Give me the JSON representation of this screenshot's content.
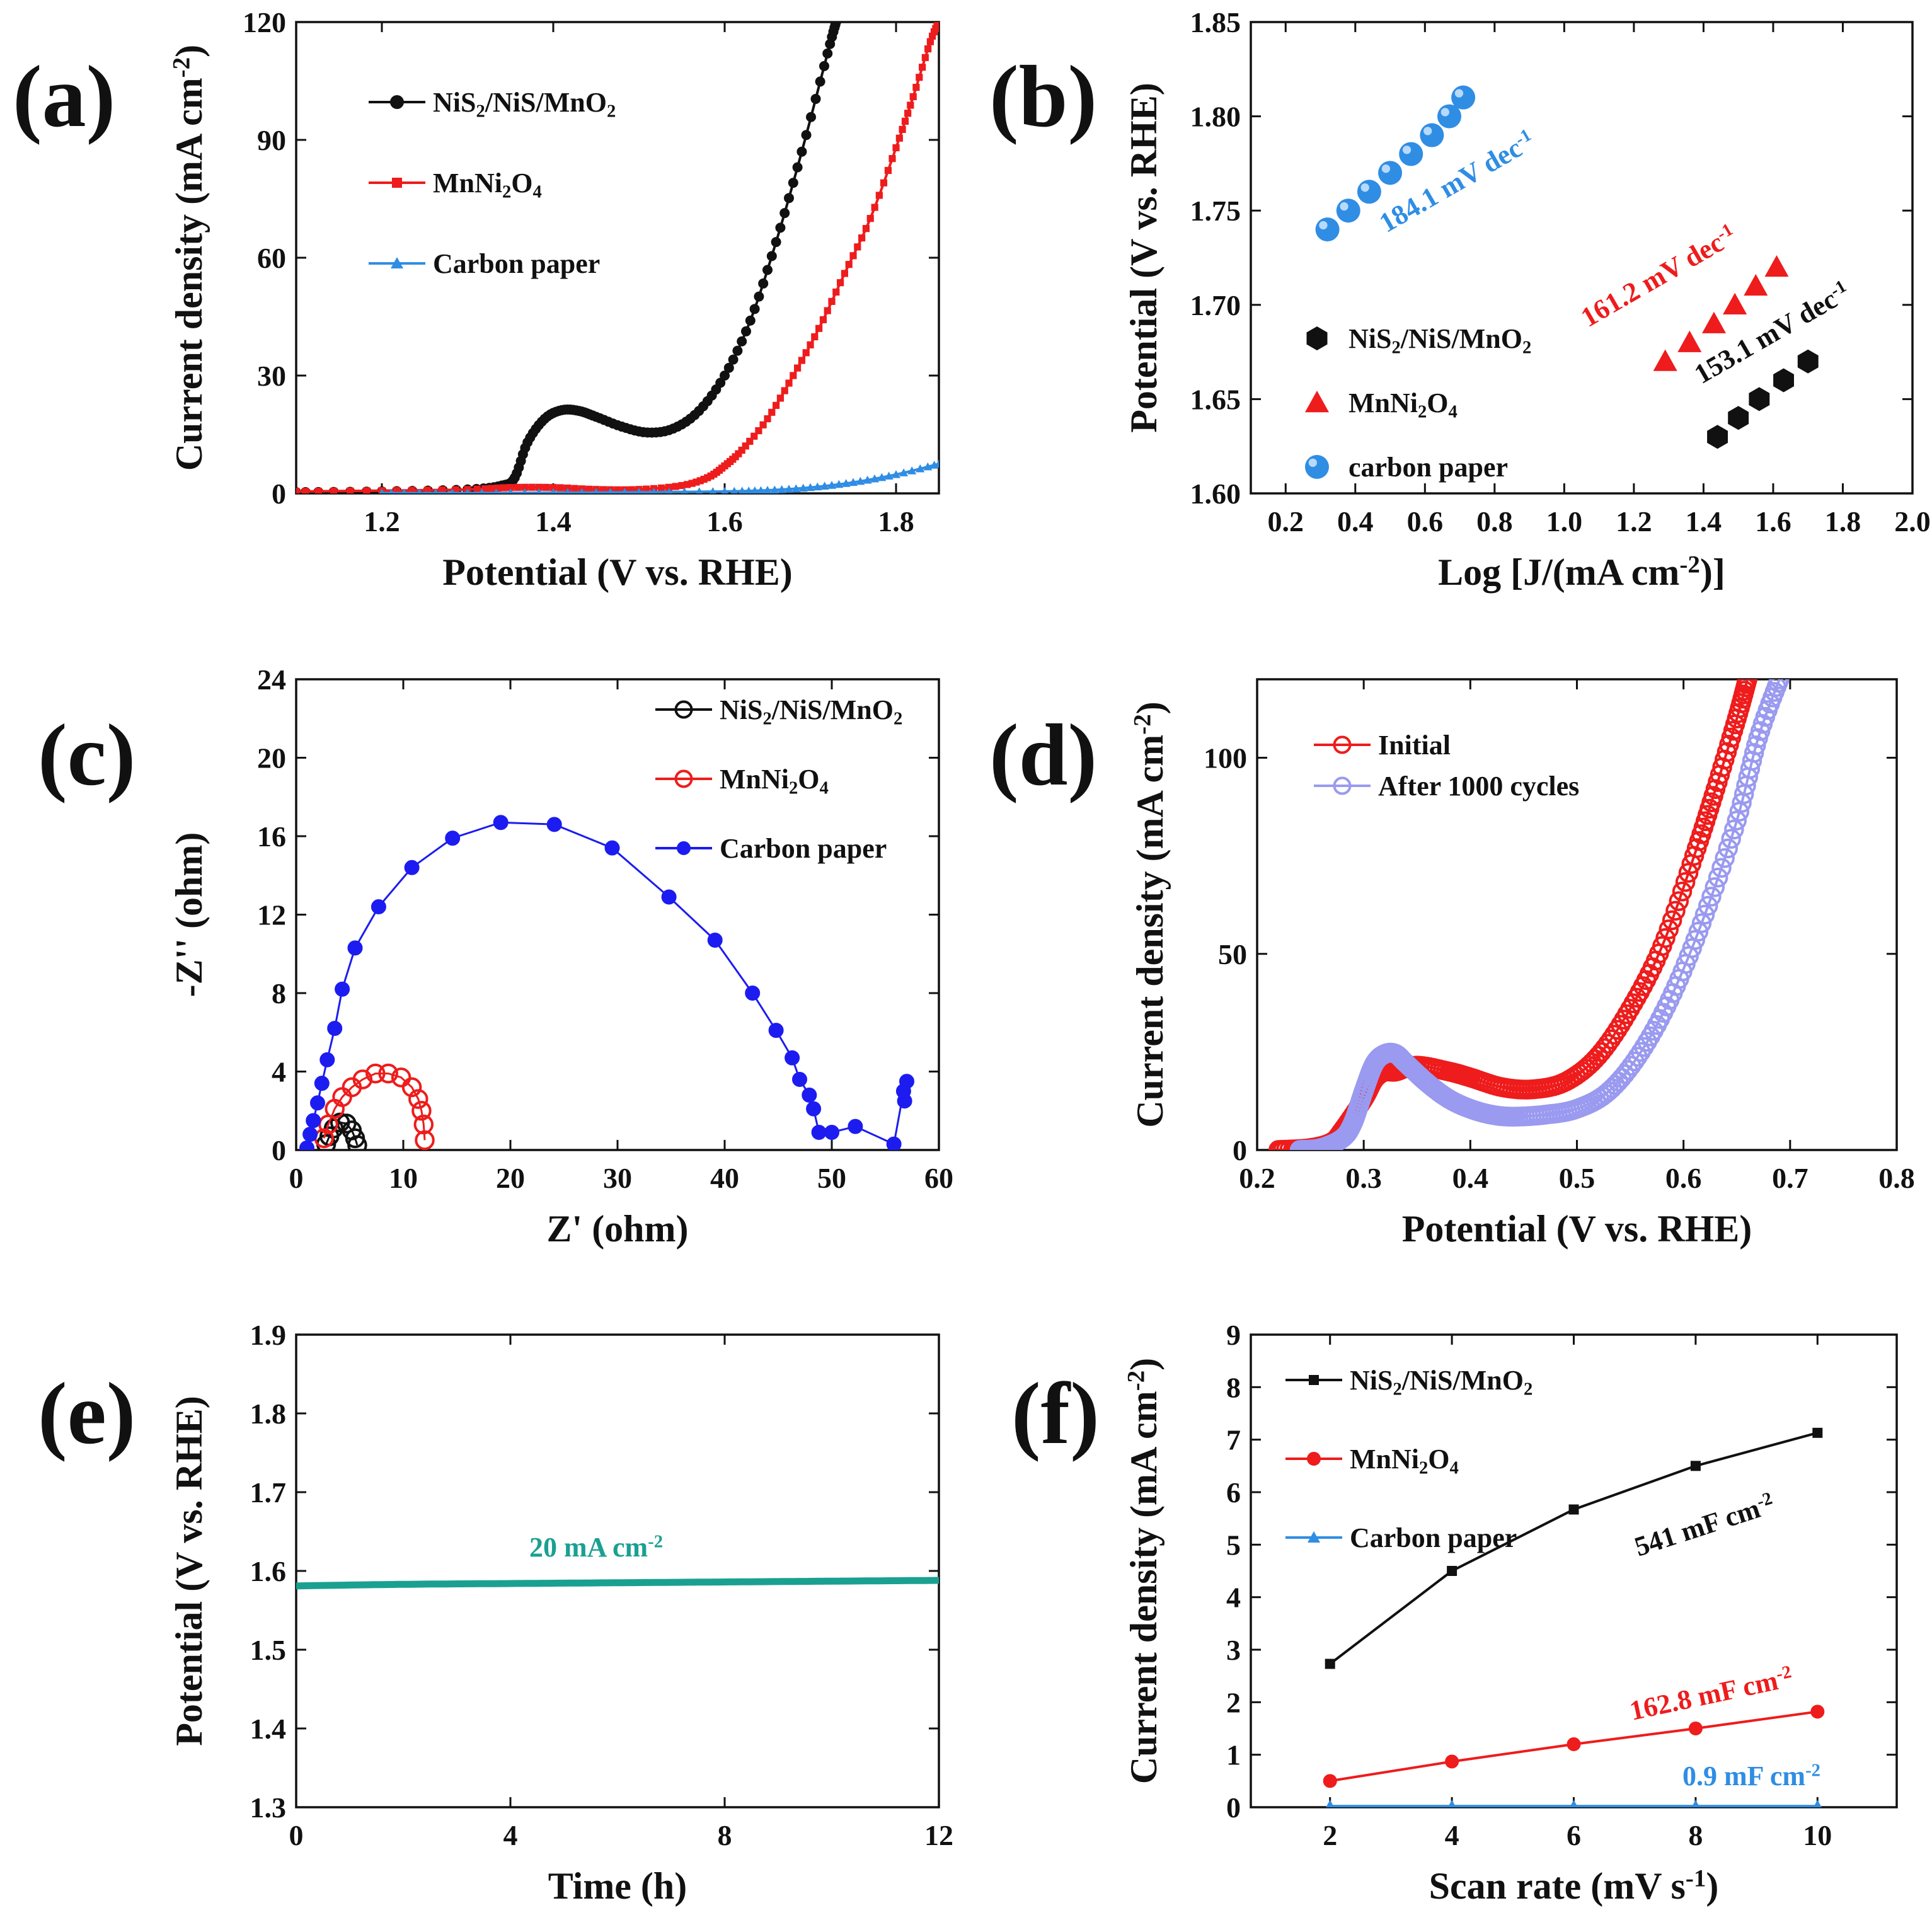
{
  "colors": {
    "black": "#111111",
    "red": "#ee1c1c",
    "blue": "#2f8de4",
    "navy": "#1c1cf0",
    "lavender": "#9a9af0",
    "teal": "#1aa091"
  },
  "chart_data": [
    {
      "id": "a",
      "panel": "(a)",
      "type": "line",
      "xlabel": "Potential (V vs. RHE)",
      "ylabel": "Current density (mA cm-2)",
      "xlim": [
        1.1,
        1.85
      ],
      "ylim": [
        0,
        120
      ],
      "xticks": [
        1.2,
        1.4,
        1.6,
        1.8
      ],
      "yticks": [
        0,
        30,
        60,
        90,
        120
      ],
      "legend": [
        "NiS2/NiS/MnO2",
        "MnNi2O4",
        "Carbon paper"
      ],
      "series": [
        {
          "name": "NiS2/NiS/MnO2",
          "color": "#111111",
          "marker": "circle",
          "x": [
            1.1,
            1.2,
            1.3,
            1.34,
            1.355,
            1.37,
            1.39,
            1.41,
            1.43,
            1.45,
            1.48,
            1.51,
            1.54,
            1.57,
            1.6,
            1.63,
            1.66,
            1.69,
            1.72,
            1.73
          ],
          "y": [
            0.3,
            0.5,
            1.0,
            2.0,
            4,
            13,
            19,
            21.2,
            21,
            19.5,
            17,
            15.5,
            16.5,
            21,
            30,
            44,
            64,
            87,
            112,
            120
          ]
        },
        {
          "name": "MnNi2O4",
          "color": "#ee1c1c",
          "marker": "square",
          "x": [
            1.1,
            1.2,
            1.3,
            1.35,
            1.4,
            1.45,
            1.5,
            1.55,
            1.58,
            1.6,
            1.62,
            1.65,
            1.68,
            1.71,
            1.74,
            1.77,
            1.8,
            1.82,
            1.84,
            1.85
          ],
          "y": [
            0.5,
            0.7,
            1.0,
            1.5,
            1.5,
            1.0,
            1.0,
            2.0,
            4.0,
            7.0,
            11,
            19,
            30,
            42,
            56,
            70,
            88,
            101,
            115,
            120
          ]
        },
        {
          "name": "Carbon paper",
          "color": "#2f8de4",
          "marker": "triangle",
          "x": [
            1.2,
            1.3,
            1.4,
            1.5,
            1.6,
            1.65,
            1.7,
            1.75,
            1.8,
            1.85
          ],
          "y": [
            0.1,
            0.1,
            0.2,
            0.3,
            0.5,
            0.8,
            1.5,
            2.8,
            4.8,
            7.5
          ]
        }
      ]
    },
    {
      "id": "b",
      "panel": "(b)",
      "type": "scatter",
      "xlabel": "Log [J/(mA cm-2)]",
      "ylabel": "Potential (V vs. RHE)",
      "xlim": [
        0.1,
        2.0
      ],
      "ylim": [
        1.6,
        1.85
      ],
      "xticks": [
        0.2,
        0.4,
        0.6,
        0.8,
        1.0,
        1.2,
        1.4,
        1.6,
        1.8,
        2.0
      ],
      "yticks": [
        1.6,
        1.65,
        1.7,
        1.75,
        1.8,
        1.85
      ],
      "legend": [
        "NiS2/NiS/MnO2",
        "MnNi2O4",
        "carbon paper"
      ],
      "annotations": [
        "184.1 mV dec-1",
        "161.2 mV dec-1",
        "153.1 mV dec-1"
      ],
      "series": [
        {
          "name": "NiS2/NiS/MnO2",
          "color": "#111111",
          "marker": "hexagon",
          "tafel_slope": "153.1 mV dec-1",
          "x": [
            1.44,
            1.5,
            1.56,
            1.63,
            1.7
          ],
          "y": [
            1.63,
            1.64,
            1.65,
            1.66,
            1.67
          ]
        },
        {
          "name": "MnNi2O4",
          "color": "#ee1c1c",
          "marker": "triangle",
          "tafel_slope": "161.2 mV dec-1",
          "x": [
            1.29,
            1.36,
            1.43,
            1.49,
            1.55,
            1.61
          ],
          "y": [
            1.67,
            1.68,
            1.69,
            1.7,
            1.71,
            1.72
          ]
        },
        {
          "name": "carbon paper",
          "color": "#2f8de4",
          "marker": "sphere",
          "tafel_slope": "184.1 mV dec-1",
          "x": [
            0.32,
            0.38,
            0.44,
            0.5,
            0.56,
            0.62,
            0.67,
            0.71
          ],
          "y": [
            1.74,
            1.75,
            1.76,
            1.77,
            1.78,
            1.79,
            1.8,
            1.81
          ]
        }
      ]
    },
    {
      "id": "c",
      "panel": "(c)",
      "type": "scatter",
      "xlabel": "Z' (ohm)",
      "ylabel": "-Z'' (ohm)",
      "xlim": [
        0,
        60
      ],
      "ylim": [
        0,
        24
      ],
      "xticks": [
        0,
        10,
        20,
        30,
        40,
        50,
        60
      ],
      "yticks": [
        0,
        4,
        8,
        12,
        16,
        20,
        24
      ],
      "legend": [
        "NiS2/NiS/MnO2",
        "MnNi2O4",
        "Carbon paper"
      ],
      "series": [
        {
          "name": "NiS2/NiS/MnO2",
          "color": "#111111",
          "marker": "open-circle",
          "x": [
            2.8,
            3.1,
            3.5,
            4.1,
            4.7,
            5.2,
            5.5,
            5.7
          ],
          "y": [
            0.3,
            0.7,
            1.1,
            1.4,
            1.35,
            1.0,
            0.6,
            0.25
          ]
        },
        {
          "name": "MnNi2O4",
          "color": "#ee1c1c",
          "marker": "open-circle",
          "x": [
            2.6,
            3.0,
            3.6,
            4.3,
            5.2,
            6.2,
            7.4,
            8.6,
            9.8,
            10.8,
            11.4,
            11.7,
            11.9,
            12.0
          ],
          "y": [
            0.6,
            1.3,
            2.1,
            2.7,
            3.2,
            3.6,
            3.9,
            3.9,
            3.7,
            3.2,
            2.6,
            2.0,
            1.3,
            0.5
          ]
        },
        {
          "name": "Carbon paper",
          "color": "#1c1cf0",
          "marker": "filled-circle",
          "x": [
            1.0,
            1.3,
            1.6,
            2.0,
            2.4,
            2.9,
            3.6,
            4.3,
            5.5,
            7.7,
            10.8,
            14.6,
            19.1,
            24.1,
            29.5,
            34.8,
            39.1,
            42.6,
            44.8,
            46.3,
            47.0,
            47.9,
            48.3,
            48.8,
            50.0,
            52.2,
            55.8,
            56.7,
            57.0,
            56.8
          ],
          "y": [
            0.1,
            0.8,
            1.5,
            2.4,
            3.4,
            4.6,
            6.2,
            8.2,
            10.3,
            12.4,
            14.4,
            15.9,
            16.7,
            16.6,
            15.4,
            12.9,
            10.7,
            8.0,
            6.1,
            4.7,
            3.6,
            2.8,
            2.1,
            0.9,
            0.9,
            1.2,
            0.3,
            3.0,
            3.5,
            2.5
          ]
        }
      ]
    },
    {
      "id": "d",
      "panel": "(d)",
      "type": "line",
      "xlabel": "Potential (V vs. RHE)",
      "ylabel": "Current density (mA cm-2)",
      "xlim": [
        0.2,
        0.8
      ],
      "ylim": [
        0,
        120
      ],
      "xticks": [
        0.2,
        0.3,
        0.4,
        0.5,
        0.6,
        0.7,
        0.8
      ],
      "yticks": [
        0,
        50,
        100
      ],
      "legend": [
        "Initial",
        "After 1000 cycles"
      ],
      "series": [
        {
          "name": "Initial",
          "color": "#ee1c1c",
          "marker": "open-circle",
          "x": [
            0.22,
            0.25,
            0.27,
            0.28,
            0.3,
            0.31,
            0.32,
            0.33,
            0.35,
            0.38,
            0.4,
            0.43,
            0.46,
            0.49,
            0.52,
            0.55,
            0.58,
            0.61,
            0.63,
            0.65,
            0.66
          ],
          "y": [
            0,
            0.5,
            2,
            5,
            13,
            18,
            20,
            20,
            21.5,
            20,
            18.5,
            16,
            15.5,
            17.5,
            24,
            36,
            52,
            75,
            92,
            110,
            120
          ]
        },
        {
          "name": "After 1000 cycles",
          "color": "#9a9af0",
          "marker": "open-circle",
          "x": [
            0.24,
            0.26,
            0.28,
            0.29,
            0.3,
            0.31,
            0.32,
            0.33,
            0.34,
            0.36,
            0.38,
            0.4,
            0.42,
            0.44,
            0.47,
            0.5,
            0.53,
            0.56,
            0.59,
            0.62,
            0.65,
            0.67,
            0.69
          ],
          "y": [
            0,
            0.5,
            3,
            7,
            15,
            22,
            24.5,
            24.5,
            22,
            17,
            13,
            10.5,
            9,
            8.5,
            9,
            10.5,
            15,
            25,
            40,
            60,
            84,
            105,
            120
          ]
        }
      ]
    },
    {
      "id": "e",
      "panel": "(e)",
      "type": "line",
      "xlabel": "Time (h)",
      "ylabel": "Potential (V vs. RHE)",
      "xlim": [
        0,
        12
      ],
      "ylim": [
        1.3,
        1.9
      ],
      "xticks": [
        0,
        4,
        8,
        12
      ],
      "yticks": [
        1.3,
        1.4,
        1.5,
        1.6,
        1.7,
        1.8,
        1.9
      ],
      "annotations": [
        "20 mA cm-2"
      ],
      "series": [
        {
          "name": "20 mA cm-2",
          "color": "#1aa091",
          "x": [
            0,
            2,
            4,
            6,
            8,
            10,
            12
          ],
          "y": [
            1.581,
            1.583,
            1.584,
            1.585,
            1.586,
            1.587,
            1.588
          ]
        }
      ]
    },
    {
      "id": "f",
      "panel": "(f)",
      "type": "line",
      "xlabel": "Scan rate (mV s-1)",
      "ylabel": "Current density (mA cm-2)",
      "xlim": [
        0.7,
        11.3
      ],
      "ylim": [
        0,
        9
      ],
      "xticks": [
        2,
        4,
        6,
        8,
        10
      ],
      "yticks": [
        0,
        1,
        2,
        3,
        4,
        5,
        6,
        7,
        8,
        9
      ],
      "legend": [
        "NiS2/NiS/MnO2",
        "MnNi2O4",
        "Carbon paper"
      ],
      "annotations": [
        "541 mF cm-2",
        "162.8 mF cm-2",
        "0.9 mF cm-2"
      ],
      "series": [
        {
          "name": "NiS2/NiS/MnO2",
          "color": "#111111",
          "marker": "square",
          "capacitance": "541 mF cm-2",
          "x": [
            2,
            4,
            6,
            8,
            10
          ],
          "y": [
            2.73,
            4.5,
            5.67,
            6.5,
            7.13
          ]
        },
        {
          "name": "MnNi2O4",
          "color": "#ee1c1c",
          "marker": "circle",
          "capacitance": "162.8 mF cm-2",
          "x": [
            2,
            4,
            6,
            8,
            10
          ],
          "y": [
            0.5,
            0.87,
            1.2,
            1.5,
            1.82
          ]
        },
        {
          "name": "Carbon paper",
          "color": "#2f8de4",
          "marker": "triangle",
          "capacitance": "0.9 mF cm-2",
          "x": [
            2,
            4,
            6,
            8,
            10
          ],
          "y": [
            0.02,
            0.02,
            0.02,
            0.02,
            0.02
          ]
        }
      ]
    }
  ]
}
